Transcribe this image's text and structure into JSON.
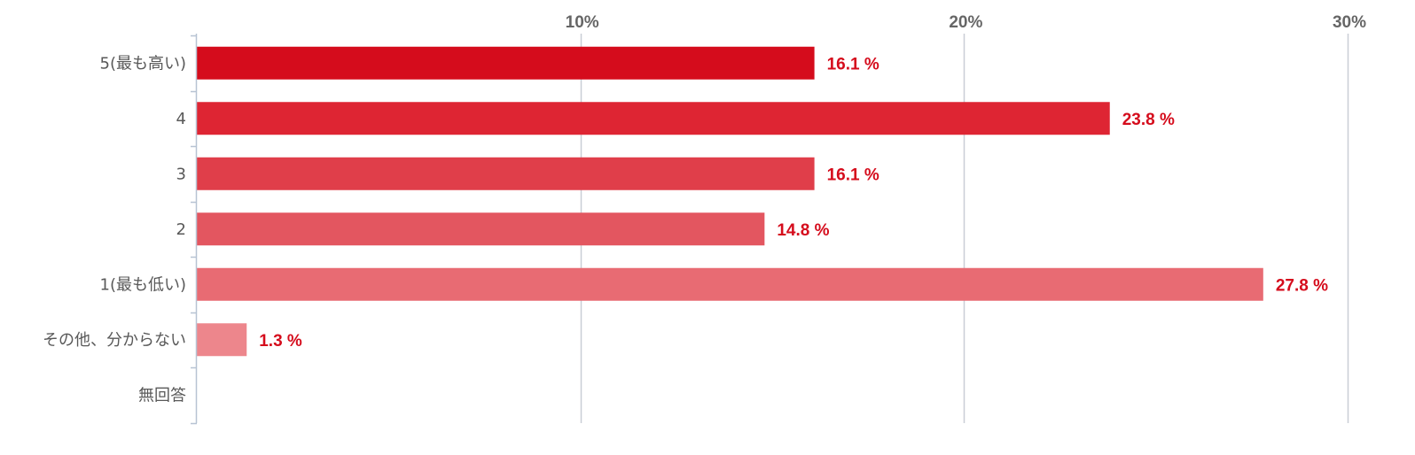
{
  "chart_data": {
    "type": "bar",
    "orientation": "horizontal",
    "categories": [
      "5(最も高い)",
      "4",
      "3",
      "2",
      "1(最も低い)",
      "その他、分からない",
      "無回答"
    ],
    "values": [
      16.1,
      23.8,
      16.1,
      14.8,
      27.8,
      1.3,
      0
    ],
    "data_labels": [
      "16.1 %",
      "23.8 %",
      "16.1 %",
      "14.8 %",
      "27.8 %",
      "1.3 %",
      ""
    ],
    "bar_colors": [
      "#d50c1c",
      "#de2533",
      "#e03e4a",
      "#e35660",
      "#e86b73",
      "#ed868c",
      "#f2a2a6"
    ],
    "label_color": "#d50c1c",
    "xlim": [
      0,
      30
    ],
    "xticks": [
      10,
      20,
      30
    ],
    "xtick_labels": [
      "10%",
      "20%",
      "30%"
    ],
    "xaxis_position": "top",
    "grid": true,
    "legend": "none",
    "title": "",
    "xlabel": "",
    "ylabel": ""
  }
}
